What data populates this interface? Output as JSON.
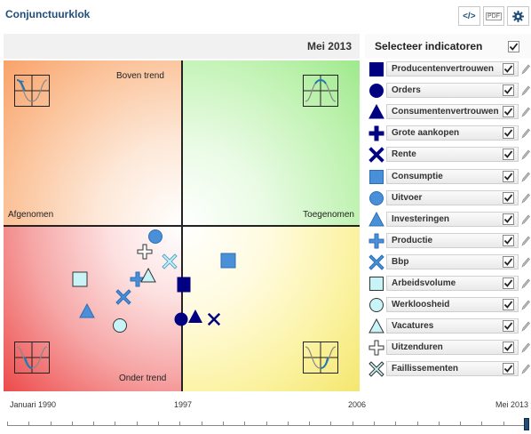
{
  "app": {
    "title": "Conjunctuurklok"
  },
  "toolbar": {
    "embed_label": "</>",
    "pdf_label": "PDF",
    "settings_icon": "gear-icon"
  },
  "clock": {
    "date": "Mei 2013",
    "quadrant_labels": {
      "top_left": "Boven trend",
      "left": "Afgenomen",
      "right": "Toegenomen",
      "bottom_left": "Onder trend"
    }
  },
  "sidebar": {
    "title": "Selecteer indicatoren",
    "all_checked": true,
    "indicators": [
      {
        "name": "Producentenvertrouwen",
        "shape": "square",
        "fill": "#000080",
        "checked": true
      },
      {
        "name": "Orders",
        "shape": "circle",
        "fill": "#000080",
        "checked": true
      },
      {
        "name": "Consumentenvertrouwen",
        "shape": "triangle",
        "fill": "#000080",
        "checked": true
      },
      {
        "name": "Grote aankopen",
        "shape": "plus",
        "fill": "#000080",
        "checked": true
      },
      {
        "name": "Rente",
        "shape": "cross",
        "fill": "#000080",
        "checked": true
      },
      {
        "name": "Consumptie",
        "shape": "square",
        "fill": "#4a90d9",
        "checked": true
      },
      {
        "name": "Uitvoer",
        "shape": "circle",
        "fill": "#4a90d9",
        "checked": true
      },
      {
        "name": "Investeringen",
        "shape": "triangle",
        "fill": "#4a90d9",
        "checked": true
      },
      {
        "name": "Productie",
        "shape": "plus",
        "fill": "#4a90d9",
        "checked": true
      },
      {
        "name": "Bbp",
        "shape": "cross",
        "fill": "#4a90d9",
        "checked": true
      },
      {
        "name": "Arbeidsvolume",
        "shape": "square",
        "fill": "#c8f3f7",
        "checked": true
      },
      {
        "name": "Werkloosheid",
        "shape": "circle",
        "fill": "#c8f3f7",
        "checked": true
      },
      {
        "name": "Vacatures",
        "shape": "triangle",
        "fill": "#c8f3f7",
        "checked": true
      },
      {
        "name": "Uitzenduren",
        "shape": "plus",
        "fill": "#c8f3f7",
        "checked": true
      },
      {
        "name": "Faillissementen",
        "shape": "cross",
        "fill": "#c8f3f7",
        "checked": true
      }
    ]
  },
  "timeline": {
    "labels": [
      "Januari 1990",
      "1997",
      "2006",
      "Mei 2013"
    ],
    "current": "Mei 2013"
  },
  "colors": {
    "dark_blue": "#000080",
    "mid_blue": "#4a90d9",
    "light_cyan": "#c8f3f7",
    "title_blue": "#1f4e79"
  }
}
